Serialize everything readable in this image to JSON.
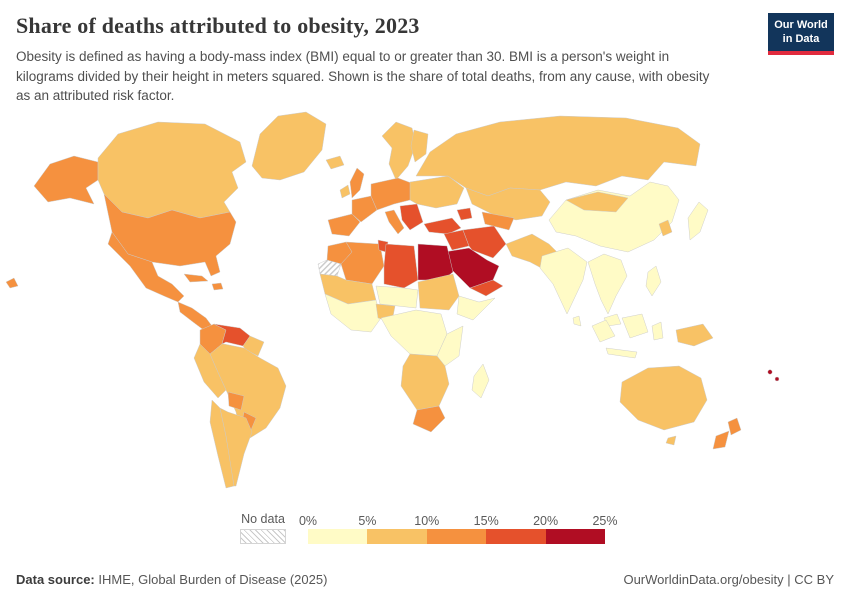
{
  "header": {
    "title": "Share of deaths attributed to obesity, 2023",
    "subtitle": "Obesity is defined as having a body-mass index (BMI) equal to or greater than 30. BMI is a person's weight in kilograms divided by their height in meters squared. Shown is the share of total deaths, from any cause, with obesity as an attributed risk factor.",
    "logo": {
      "line1": "Our World",
      "line2": "in Data",
      "bg_color": "#12355B",
      "accent_color": "#E12B3E"
    }
  },
  "legend": {
    "no_data_label": "No data",
    "tick_labels": [
      "0%",
      "5%",
      "10%",
      "15%",
      "20%",
      "25%"
    ]
  },
  "footer": {
    "source_label": "Data source:",
    "source_text": "IHME, Global Burden of Disease (2025)",
    "link": "OurWorldinData.org/obesity",
    "divider": "|",
    "license": "CC BY"
  },
  "chart_data": {
    "type": "heatmap",
    "subtype": "choropleth-world-map",
    "title": "Share of deaths attributed to obesity, 2023",
    "unit": "share of total deaths",
    "year": "2023",
    "legend_position": "bottom",
    "legend_bins": [
      {
        "label": "0%-5%",
        "min": 0,
        "max": 5,
        "color": "#FFFBC6"
      },
      {
        "label": "5%-10%",
        "min": 5,
        "max": 10,
        "color": "#F8C265"
      },
      {
        "label": "10%-15%",
        "min": 10,
        "max": 15,
        "color": "#F5913F"
      },
      {
        "label": "15%-20%",
        "min": 15,
        "max": 20,
        "color": "#E5512C"
      },
      {
        "label": "20%-25%",
        "min": 20,
        "max": 25,
        "color": "#B00D23"
      }
    ],
    "no_data": {
      "label": "No data",
      "pattern": "diagonal-hatch",
      "line_color": "#C9C9C9"
    },
    "regions": {
      "hawaii": 2,
      "alaska": 2,
      "canada": 1,
      "greenland": 1,
      "usa": 2,
      "mexico": 2,
      "central-america": 2,
      "cuba": 2,
      "hispaniola": 2,
      "colombia": 2,
      "venezuela": 3,
      "guyanas": 1,
      "brazil": 1,
      "peru": 1,
      "bolivia": 2,
      "paraguay-uruguay": 2,
      "chile": 1,
      "argentina": 1,
      "iceland": 1,
      "ireland": 1,
      "uk": 2,
      "scandinavia": 1,
      "finland": 1,
      "iberia": 2,
      "france": 2,
      "central-europe": 2,
      "italy": 2,
      "balkans": 3,
      "eastern-europe": 1,
      "russia": 1,
      "kazakhstan-central-asia": 1,
      "uzbekistan-turkmenistan": 2,
      "turkey": 3,
      "caucasus": 3,
      "iraq-syria": 3,
      "iran": 3,
      "saudi-arabia-gulf": 4,
      "yemen-oman": 3,
      "morocco": 2,
      "western-sahara": "nodata",
      "algeria": 2,
      "tunisia": 3,
      "libya": 3,
      "egypt": 4,
      "mauritania-mali": 1,
      "niger-chad": 0,
      "sudan": 1,
      "west-africa": 0,
      "nigeria": 1,
      "horn-of-africa": 0,
      "central-africa": 0,
      "east-africa": 0,
      "southern-africa": 1,
      "south-africa": 2,
      "madagascar": 0,
      "afghanistan-pakistan": 1,
      "india": 0,
      "sri-lanka": 0,
      "china": 0,
      "mongolia": 1,
      "korea": 1,
      "japan": 0,
      "indochina": 0,
      "malaysia": 0,
      "philippines": 0,
      "sumatra": 0,
      "borneo": 0,
      "java": 0,
      "sulawesi": 0,
      "new-guinea": 1,
      "australia": 1,
      "tasmania": 1,
      "new-zealand": 2,
      "pacific-islands": 4
    }
  }
}
